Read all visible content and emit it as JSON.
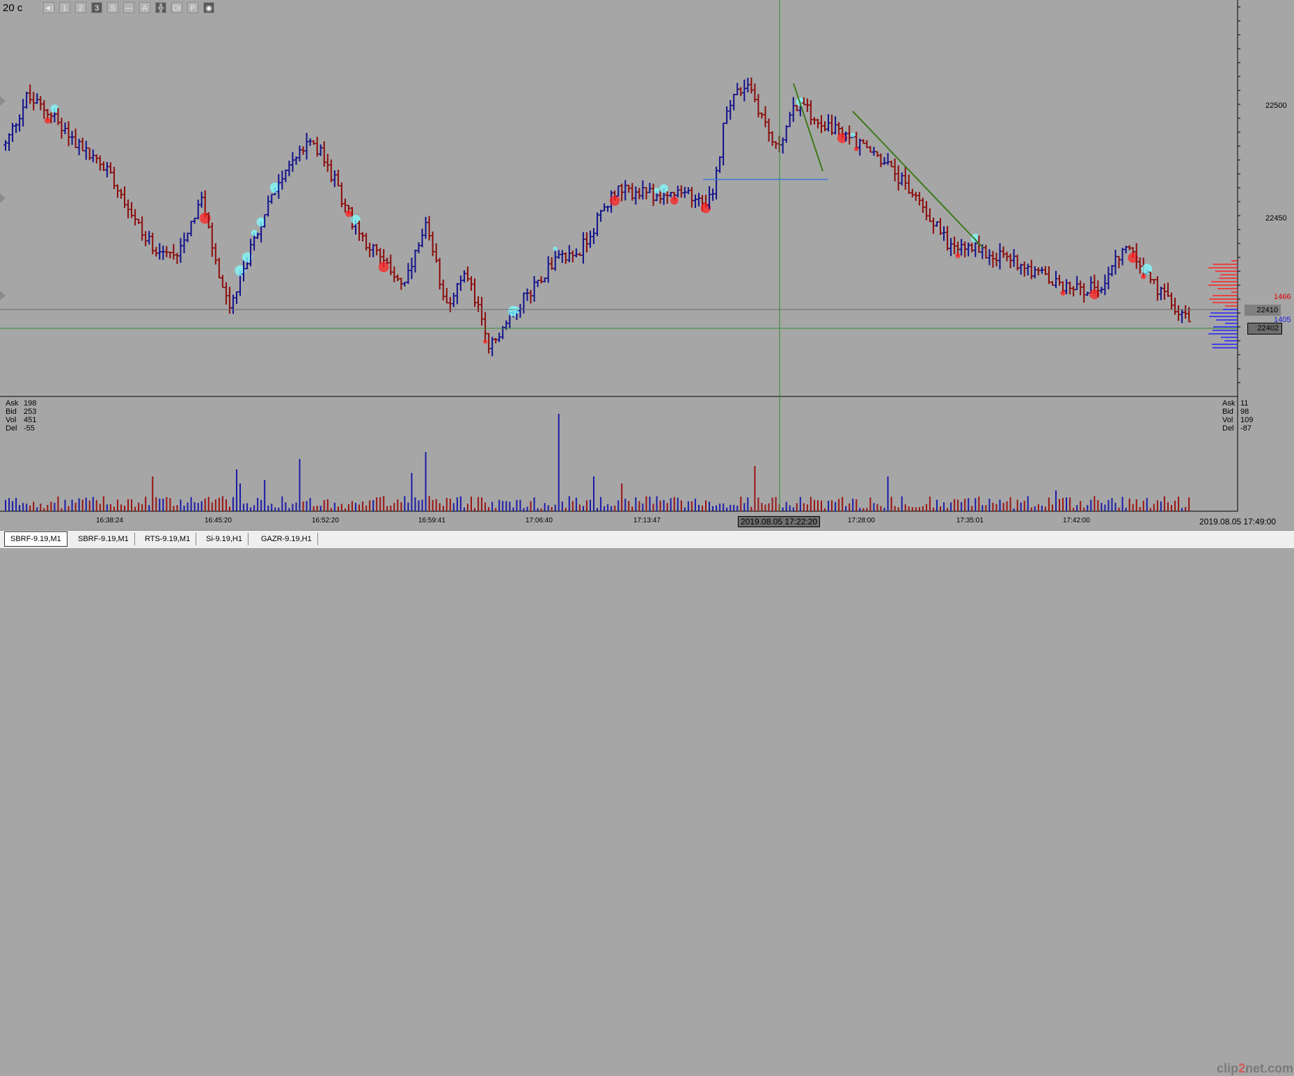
{
  "header": {
    "timeframe": "20 c"
  },
  "toolbar": [
    {
      "label": "◄|",
      "active": false
    },
    {
      "label": "1",
      "active": false
    },
    {
      "label": "2",
      "active": false
    },
    {
      "label": "3",
      "active": true
    },
    {
      "label": "S",
      "active": false
    },
    {
      "label": "—",
      "active": false
    },
    {
      "label": "A",
      "active": false
    },
    {
      "label": "╬",
      "active": true
    },
    {
      "label": "OI",
      "active": false
    },
    {
      "label": "P",
      "active": false
    },
    {
      "label": "◉",
      "active": true
    }
  ],
  "price_axis": {
    "ticks": [
      "22500",
      "22450"
    ],
    "current_price": "22410",
    "cursor_price": "22402",
    "ask_volume_label": "1466",
    "bid_volume_label": "1405"
  },
  "time_axis": {
    "ticks": [
      "16:38:24",
      "16:45:20",
      "16:52:20",
      "16:59:41",
      "17:06:40",
      "17:13:47",
      "17:28:00",
      "17:35:01",
      "17:42:00"
    ],
    "cursor_time": "2019.08.05 17:22:20",
    "last_time": "2019.08.05 17:49:00"
  },
  "stats_left": {
    "ask": "198",
    "bid": "253",
    "vol": "451",
    "del": "-55"
  },
  "stats_right": {
    "ask": "11",
    "bid": "98",
    "vol": "109",
    "del": "-87"
  },
  "stats_labels": {
    "ask": "Ask",
    "bid": "Bid",
    "vol": "Vol",
    "del": "Del"
  },
  "tabs": [
    "SBRF-9.19,M1",
    "SBRF-9.19,M1",
    "RTS-9.19,M1",
    "Si-9.19,H1",
    "GAZR-9.19,H1"
  ],
  "logo": {
    "main": "clip",
    "accent": "2",
    "tail": "net.com"
  },
  "colors": {
    "up": "#10108c",
    "down": "#8b0a0a",
    "background": "#a6a6a6",
    "crosshair": "#2f8f2f",
    "accent_cyan": "#7fffff"
  },
  "chart_data": {
    "type": "candlestick-bars",
    "price_anchors": [
      [
        0,
        22482
      ],
      [
        6,
        22503
      ],
      [
        12,
        22497
      ],
      [
        22,
        22480
      ],
      [
        30,
        22470
      ],
      [
        40,
        22440
      ],
      [
        48,
        22432
      ],
      [
        56,
        22458
      ],
      [
        60,
        22430
      ],
      [
        64,
        22408
      ],
      [
        72,
        22445
      ],
      [
        80,
        22472
      ],
      [
        88,
        22484
      ],
      [
        94,
        22466
      ],
      [
        100,
        22445
      ],
      [
        108,
        22430
      ],
      [
        114,
        22420
      ],
      [
        120,
        22445
      ],
      [
        126,
        22412
      ],
      [
        132,
        22425
      ],
      [
        138,
        22392
      ],
      [
        146,
        22410
      ],
      [
        156,
        22430
      ],
      [
        164,
        22435
      ],
      [
        174,
        22462
      ],
      [
        184,
        22460
      ],
      [
        192,
        22460
      ],
      [
        202,
        22458
      ],
      [
        206,
        22500
      ],
      [
        212,
        22510
      ],
      [
        220,
        22480
      ],
      [
        226,
        22500
      ],
      [
        236,
        22490
      ],
      [
        250,
        22476
      ],
      [
        262,
        22455
      ],
      [
        270,
        22437
      ],
      [
        280,
        22435
      ],
      [
        290,
        22430
      ],
      [
        300,
        22420
      ],
      [
        312,
        22418
      ],
      [
        320,
        22437
      ],
      [
        330,
        22416
      ],
      [
        338,
        22405
      ]
    ],
    "volume_peaks": [
      [
        158,
        140
      ],
      [
        120,
        85
      ],
      [
        116,
        55
      ],
      [
        84,
        75
      ],
      [
        66,
        60
      ],
      [
        67,
        40
      ],
      [
        42,
        50
      ],
      [
        74,
        45
      ],
      [
        168,
        50
      ],
      [
        214,
        65
      ],
      [
        176,
        45
      ],
      [
        176,
        40
      ],
      [
        252,
        50
      ],
      [
        300,
        30
      ]
    ],
    "ylim": [
      22380,
      22540
    ]
  }
}
